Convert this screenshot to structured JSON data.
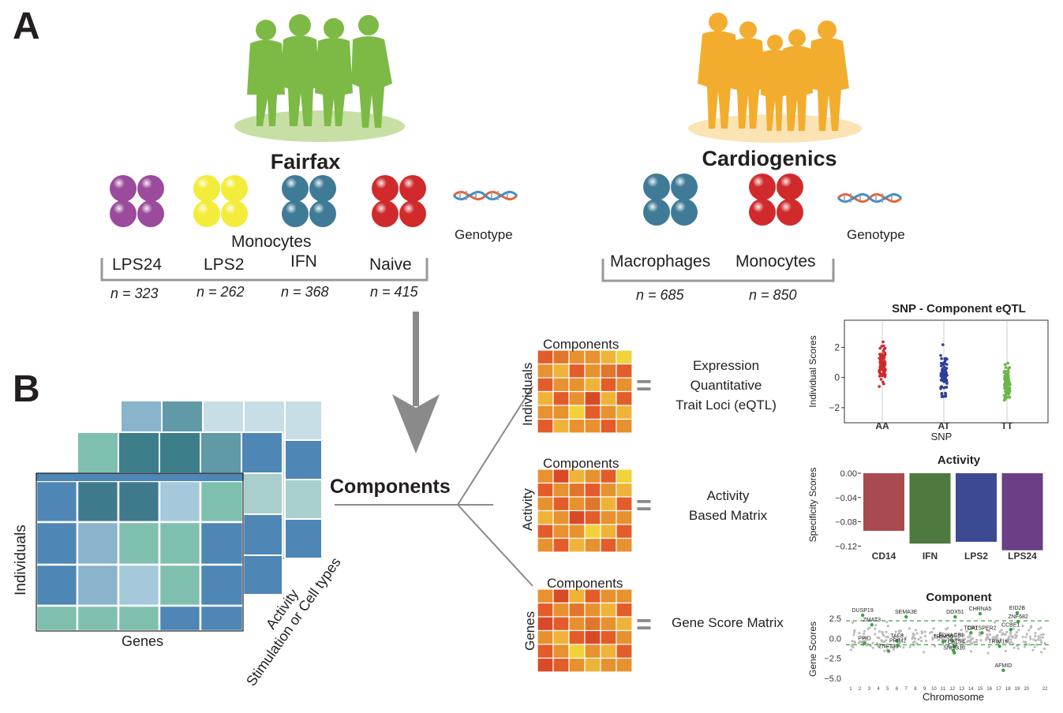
{
  "panel_a_label": "A",
  "panel_b_label": "B",
  "fairfax": {
    "title": "Fairfax",
    "cell_type": "Monocytes",
    "conditions": [
      "LPS24",
      "LPS2",
      "IFN",
      "Naive"
    ],
    "counts": [
      "n = 323",
      "n = 262",
      "n = 368",
      "n = 415"
    ],
    "genotype": "Genotype"
  },
  "cardiogenics": {
    "title": "Cardiogenics",
    "conditions": [
      "Macrophages",
      "Monocytes"
    ],
    "counts": [
      "n = 685",
      "n = 850"
    ],
    "genotype": "Genotype"
  },
  "colors": {
    "fairfax_green": "#7cba45",
    "cardio_orange": "#f2ad2e",
    "purple": "#9b4a9c",
    "yellow": "#f4ec3b",
    "teal": "#3f7a96",
    "red": "#d12a2c"
  },
  "tensor": {
    "y_axis": "Individuals",
    "x_axis": "Genes",
    "z_axis_line1": "Activity",
    "z_axis_line2": "Stimulation or Cell types"
  },
  "components_label": "Components",
  "matrices": [
    {
      "top": "Components",
      "side": "Individuals",
      "result": [
        "Expression",
        "Quantitative",
        "Trait Loci (eQTL)"
      ]
    },
    {
      "top": "Components",
      "side": "Activity",
      "result": [
        "Activity",
        "Based Matrix"
      ]
    },
    {
      "top": "Components",
      "side": "Genes",
      "result": [
        "Gene Score Matrix"
      ]
    }
  ],
  "equals_sign": "=",
  "chart_data": [
    {
      "type": "scatter",
      "title": "SNP - Component eQTL",
      "xlabel": "SNP",
      "ylabel": "Individual Scores",
      "categories": [
        "AA",
        "AT",
        "TT"
      ],
      "y_ticks": [
        "2",
        "0",
        "−2"
      ],
      "ylim": [
        -3,
        3.8
      ],
      "series": [
        {
          "category": "AA",
          "center": 1.0,
          "min": -0.8,
          "max": 3.6
        },
        {
          "category": "AT",
          "center": 0.2,
          "min": -2.5,
          "max": 2.2
        },
        {
          "category": "TT",
          "center": -0.4,
          "min": -2.6,
          "max": 1.2
        }
      ],
      "colors": [
        "#d12a2c",
        "#2e3f99",
        "#6ab545"
      ]
    },
    {
      "type": "bar",
      "title": "Activity",
      "ylabel": "Specificity Scores",
      "categories": [
        "CD14",
        "IFN",
        "LPS2",
        "LPS24"
      ],
      "values": [
        -0.095,
        -0.116,
        -0.113,
        -0.127
      ],
      "y_ticks": [
        "0.00",
        "−0.04",
        "−0.08",
        "−0.12"
      ],
      "ylim": [
        -0.13,
        0.0
      ],
      "colors": [
        "#a94a4f",
        "#4e7a3f",
        "#3b4a93",
        "#6b3f86"
      ]
    },
    {
      "type": "scatter",
      "title": "Component",
      "xlabel": "Chromosome",
      "ylabel": "Gene Scores",
      "y_ticks": [
        "2.5",
        "0.0",
        "−2.5",
        "−5.0"
      ],
      "ylim": [
        -5.5,
        3.6
      ],
      "x_ticks": [
        "1",
        "2",
        "3",
        "4",
        "5",
        "6",
        "7",
        "8",
        "9",
        "10",
        "11",
        "12",
        "13",
        "14",
        "15",
        "16",
        "17",
        "18",
        "19",
        "20",
        "22"
      ],
      "thresholds": [
        2.2,
        -0.8
      ],
      "genes": [
        {
          "name": "DUSP19",
          "chr": 2.3,
          "score": 2.9
        },
        {
          "name": "ZMAT3",
          "chr": 3.3,
          "score": 1.7
        },
        {
          "name": "SEMA3E",
          "chr": 7.0,
          "score": 2.7
        },
        {
          "name": "TAF8",
          "chr": 6.0,
          "score": -0.3
        },
        {
          "name": "PPID",
          "chr": 2.5,
          "score": -0.6
        },
        {
          "name": "ZNF131",
          "chr": 5.1,
          "score": -1.6
        },
        {
          "name": "PRIM2",
          "chr": 6.1,
          "score": -0.9
        },
        {
          "name": "DDX51",
          "chr": 12.3,
          "score": 2.7
        },
        {
          "name": "CHRNA5",
          "chr": 15.0,
          "score": 3.1
        },
        {
          "name": "TDP1",
          "chr": 14.0,
          "score": 0.7
        },
        {
          "name": "CATSPER2",
          "chr": 15.2,
          "score": 0.7
        },
        {
          "name": "TRIM34",
          "chr": 11.0,
          "score": -0.4
        },
        {
          "name": "FDXACB1",
          "chr": 11.9,
          "score": -0.2
        },
        {
          "name": "LYZ",
          "chr": 12.1,
          "score": -1.5
        },
        {
          "name": "YEATS4",
          "chr": 12.2,
          "score": -1.0
        },
        {
          "name": "SNHG10",
          "chr": 12.2,
          "score": -1.8
        },
        {
          "name": "EID2B",
          "chr": 19.0,
          "score": 3.2
        },
        {
          "name": "ZNF682",
          "chr": 19.1,
          "score": 2.1
        },
        {
          "name": "CCBE1",
          "chr": 18.3,
          "score": 1.1
        },
        {
          "name": "TRIM16L",
          "chr": 17.1,
          "score": -1.0
        },
        {
          "name": "AFMID",
          "chr": 17.5,
          "score": -4.0
        }
      ],
      "colors": [
        "#bdbdbd",
        "#3aa343"
      ]
    }
  ]
}
